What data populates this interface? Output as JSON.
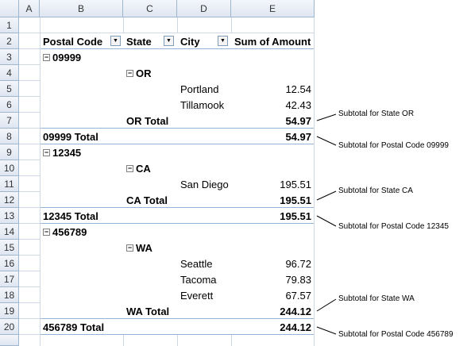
{
  "columns": [
    "A",
    "B",
    "C",
    "D",
    "E"
  ],
  "rows": [
    "1",
    "2",
    "3",
    "4",
    "5",
    "6",
    "7",
    "8",
    "9",
    "10",
    "11",
    "12",
    "13",
    "14",
    "15",
    "16",
    "17",
    "18",
    "19",
    "20"
  ],
  "headers": {
    "postal": "Postal Code",
    "state": "State",
    "city": "City",
    "amount": "Sum of Amount"
  },
  "pivot": {
    "g1": {
      "postal": "09999",
      "state": "OR",
      "city1": "Portland",
      "amt1": "12.54",
      "city2": "Tillamook",
      "amt2": "42.43",
      "state_total": "OR Total",
      "state_total_amt": "54.97",
      "postal_total": "09999 Total",
      "postal_total_amt": "54.97"
    },
    "g2": {
      "postal": "12345",
      "state": "CA",
      "city1": "San Diego",
      "amt1": "195.51",
      "state_total": "CA Total",
      "state_total_amt": "195.51",
      "postal_total": "12345 Total",
      "postal_total_amt": "195.51"
    },
    "g3": {
      "postal": "456789",
      "state": "WA",
      "city1": "Seattle",
      "amt1": "96.72",
      "city2": "Tacoma",
      "amt2": "79.83",
      "city3": "Everett",
      "amt3": "67.57",
      "state_total": "WA Total",
      "state_total_amt": "244.12",
      "postal_total": "456789 Total",
      "postal_total_amt": "244.12"
    }
  },
  "notes": {
    "n1": "Subtotal for State OR",
    "n2": "Subtotal for Postal Code 09999",
    "n3": "Subtotal for State CA",
    "n4": "Subtotal for Postal Code 12345",
    "n5": "Subtotal for State WA",
    "n6": "Subtotal for Postal Code 456789"
  },
  "icons": {
    "dropdown": "dropdown-arrow-icon",
    "collapse": "collapse-minus-icon"
  }
}
